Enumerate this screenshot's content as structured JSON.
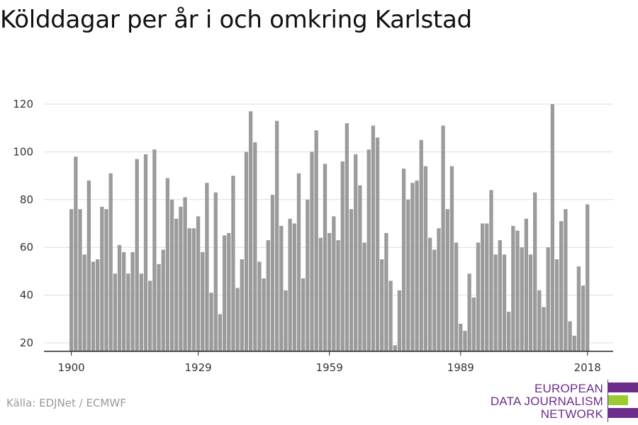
{
  "title": "Kölddagar per år i och omkring Karlstad",
  "source": "Källa: EDJNet / ECMWF",
  "logo": {
    "lines": [
      "EUROPEAN",
      "DATA JOURNALISM",
      "NETWORK"
    ],
    "text_color": "#6c2c8c",
    "bar_colors": [
      "#6c2c8c",
      "#99cc33",
      "#6c2c8c"
    ]
  },
  "chart_data": {
    "type": "bar",
    "title": "Kölddagar per år i och omkring Karlstad",
    "xlabel": "",
    "ylabel": "",
    "bar_color": "#9b9b9b",
    "grid_color": "#dddddd",
    "grid": true,
    "ylim": [
      17,
      120
    ],
    "yticks": [
      20,
      40,
      60,
      80,
      100,
      120
    ],
    "xticks": [
      1900,
      1929,
      1959,
      1989,
      2018
    ],
    "x": [
      1900,
      1901,
      1902,
      1903,
      1904,
      1905,
      1906,
      1907,
      1908,
      1909,
      1910,
      1911,
      1912,
      1913,
      1914,
      1915,
      1916,
      1917,
      1918,
      1919,
      1920,
      1921,
      1922,
      1923,
      1924,
      1925,
      1926,
      1927,
      1928,
      1929,
      1930,
      1931,
      1932,
      1933,
      1934,
      1935,
      1936,
      1937,
      1938,
      1939,
      1940,
      1941,
      1942,
      1943,
      1944,
      1945,
      1946,
      1947,
      1948,
      1949,
      1950,
      1951,
      1952,
      1953,
      1954,
      1955,
      1956,
      1957,
      1958,
      1959,
      1960,
      1961,
      1962,
      1963,
      1964,
      1965,
      1966,
      1967,
      1968,
      1969,
      1970,
      1971,
      1972,
      1973,
      1974,
      1975,
      1976,
      1977,
      1978,
      1979,
      1980,
      1981,
      1982,
      1983,
      1984,
      1985,
      1986,
      1987,
      1988,
      1989,
      1990,
      1991,
      1992,
      1993,
      1994,
      1995,
      1996,
      1997,
      1998,
      1999,
      2000,
      2001,
      2002,
      2003,
      2004,
      2005,
      2006,
      2007,
      2008,
      2009,
      2010,
      2011,
      2012,
      2013,
      2014,
      2015,
      2016,
      2017,
      2018
    ],
    "values": [
      76,
      98,
      76,
      57,
      88,
      54,
      55,
      77,
      76,
      91,
      49,
      61,
      58,
      49,
      58,
      97,
      49,
      99,
      46,
      101,
      53,
      59,
      89,
      80,
      72,
      77,
      81,
      68,
      68,
      73,
      58,
      87,
      41,
      83,
      32,
      65,
      66,
      90,
      43,
      55,
      100,
      117,
      104,
      54,
      47,
      63,
      82,
      113,
      69,
      42,
      72,
      70,
      91,
      47,
      80,
      100,
      109,
      64,
      95,
      66,
      73,
      63,
      96,
      112,
      76,
      99,
      86,
      62,
      101,
      111,
      106,
      55,
      66,
      46,
      19,
      42,
      93,
      80,
      87,
      88,
      105,
      94,
      64,
      59,
      68,
      111,
      76,
      94,
      62,
      28,
      25,
      49,
      39,
      62,
      70,
      70,
      84,
      57,
      63,
      57,
      33,
      69,
      67,
      60,
      72,
      57,
      83,
      42,
      35,
      60,
      120,
      55,
      71,
      76,
      29,
      23,
      52,
      44,
      78
    ]
  }
}
